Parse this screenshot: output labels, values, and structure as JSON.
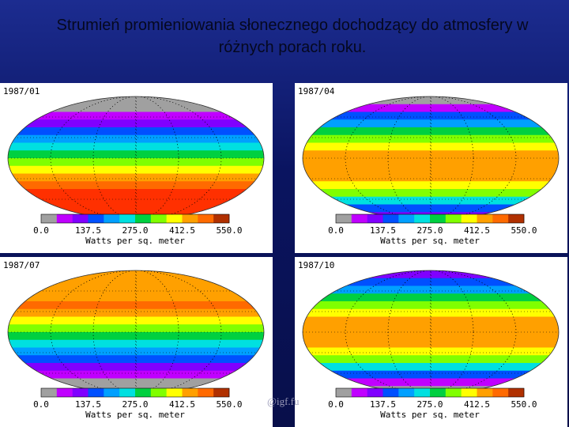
{
  "title": "Strumień promieniowania słonecznego dochodzący do atmosfery w różnych porach roku.",
  "panels": [
    {
      "date": "1987/01",
      "ticks": [
        "0.0",
        "137.5",
        "275.0",
        "412.5",
        "550.0"
      ],
      "unit": "Watts per sq. meter"
    },
    {
      "date": "1987/04",
      "ticks": [
        "0.0",
        "137.5",
        "275.0",
        "412.5",
        "550.0"
      ],
      "unit": "Watts per sq. meter"
    },
    {
      "date": "1987/07",
      "ticks": [
        "0.0",
        "137.5",
        "275.0",
        "412.5",
        "550.0"
      ],
      "unit": "Watts per sq. meter"
    },
    {
      "date": "1987/10",
      "ticks": [
        "0.0",
        "137.5",
        "275.0",
        "412.5",
        "550.0"
      ],
      "unit": "Watts per sq. meter"
    }
  ],
  "footer": "@igf.fu"
}
